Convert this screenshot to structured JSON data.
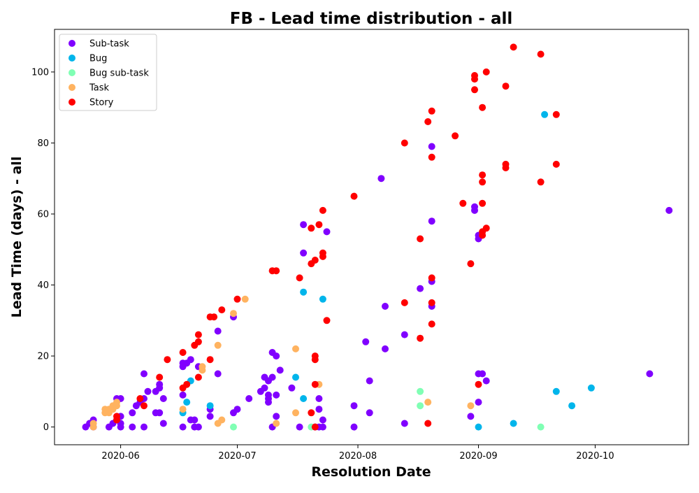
{
  "chart_data": {
    "type": "scatter",
    "title": "FB - Lead time distribution - all",
    "xlabel": "Resolution Date",
    "ylabel": "Lead Time (days) - all",
    "xlim": [
      "2020-05-15",
      "2020-10-25"
    ],
    "ylim": [
      -5,
      112
    ],
    "x_ticks": [
      "2020-06",
      "2020-07",
      "2020-08",
      "2020-09",
      "2020-10"
    ],
    "y_ticks": [
      0,
      20,
      40,
      60,
      80,
      100
    ],
    "grid": false,
    "legend_position": "top-left",
    "series": [
      {
        "name": "Sub-task",
        "color": "#8000ff",
        "points": [
          [
            "2020-05-23",
            0
          ],
          [
            "2020-05-24",
            1
          ],
          [
            "2020-05-25",
            2
          ],
          [
            "2020-05-25",
            0
          ],
          [
            "2020-05-29",
            0
          ],
          [
            "2020-05-30",
            1
          ],
          [
            "2020-05-31",
            2
          ],
          [
            "2020-05-31",
            8
          ],
          [
            "2020-06-01",
            8
          ],
          [
            "2020-06-01",
            3
          ],
          [
            "2020-06-01",
            1
          ],
          [
            "2020-06-01",
            0
          ],
          [
            "2020-06-04",
            4
          ],
          [
            "2020-06-04",
            0
          ],
          [
            "2020-06-05",
            6
          ],
          [
            "2020-06-06",
            7
          ],
          [
            "2020-06-07",
            15
          ],
          [
            "2020-06-07",
            8
          ],
          [
            "2020-06-07",
            0
          ],
          [
            "2020-06-08",
            10
          ],
          [
            "2020-06-10",
            10
          ],
          [
            "2020-06-10",
            4
          ],
          [
            "2020-06-11",
            11
          ],
          [
            "2020-06-11",
            12
          ],
          [
            "2020-06-11",
            4
          ],
          [
            "2020-06-12",
            8
          ],
          [
            "2020-06-12",
            1
          ],
          [
            "2020-06-17",
            9
          ],
          [
            "2020-06-17",
            17
          ],
          [
            "2020-06-17",
            18
          ],
          [
            "2020-06-17",
            0
          ],
          [
            "2020-06-18",
            18
          ],
          [
            "2020-06-19",
            19
          ],
          [
            "2020-06-19",
            2
          ],
          [
            "2020-06-20",
            0
          ],
          [
            "2020-06-20",
            2
          ],
          [
            "2020-06-21",
            0
          ],
          [
            "2020-06-21",
            17
          ],
          [
            "2020-06-24",
            3
          ],
          [
            "2020-06-24",
            5
          ],
          [
            "2020-06-26",
            27
          ],
          [
            "2020-06-26",
            15
          ],
          [
            "2020-06-30",
            31
          ],
          [
            "2020-06-30",
            4
          ],
          [
            "2020-07-01",
            5
          ],
          [
            "2020-07-04",
            8
          ],
          [
            "2020-07-07",
            10
          ],
          [
            "2020-07-08",
            11
          ],
          [
            "2020-07-08",
            14
          ],
          [
            "2020-07-09",
            13
          ],
          [
            "2020-07-09",
            9
          ],
          [
            "2020-07-09",
            8
          ],
          [
            "2020-07-09",
            7
          ],
          [
            "2020-07-10",
            21
          ],
          [
            "2020-07-10",
            14
          ],
          [
            "2020-07-10",
            0
          ],
          [
            "2020-07-11",
            20
          ],
          [
            "2020-07-11",
            9
          ],
          [
            "2020-07-11",
            3
          ],
          [
            "2020-07-12",
            16
          ],
          [
            "2020-07-15",
            11
          ],
          [
            "2020-07-17",
            0
          ],
          [
            "2020-07-18",
            57
          ],
          [
            "2020-07-18",
            49
          ],
          [
            "2020-07-21",
            0
          ],
          [
            "2020-07-22",
            5
          ],
          [
            "2020-07-22",
            8
          ],
          [
            "2020-07-22",
            0
          ],
          [
            "2020-07-23",
            0
          ],
          [
            "2020-07-23",
            2
          ],
          [
            "2020-07-24",
            55
          ],
          [
            "2020-07-31",
            6
          ],
          [
            "2020-07-31",
            0
          ],
          [
            "2020-08-03",
            24
          ],
          [
            "2020-08-04",
            13
          ],
          [
            "2020-08-04",
            4
          ],
          [
            "2020-08-07",
            70
          ],
          [
            "2020-08-08",
            34
          ],
          [
            "2020-08-08",
            22
          ],
          [
            "2020-08-13",
            26
          ],
          [
            "2020-08-13",
            1
          ],
          [
            "2020-08-17",
            39
          ],
          [
            "2020-08-20",
            79
          ],
          [
            "2020-08-20",
            58
          ],
          [
            "2020-08-20",
            41
          ],
          [
            "2020-08-20",
            34
          ],
          [
            "2020-08-30",
            3
          ],
          [
            "2020-08-31",
            62
          ],
          [
            "2020-08-31",
            61
          ],
          [
            "2020-09-01",
            54
          ],
          [
            "2020-09-01",
            53
          ],
          [
            "2020-09-01",
            7
          ],
          [
            "2020-09-01",
            15
          ],
          [
            "2020-09-02",
            15
          ],
          [
            "2020-09-03",
            13
          ],
          [
            "2020-10-15",
            15
          ],
          [
            "2020-10-20",
            61
          ]
        ]
      },
      {
        "name": "Bug",
        "color": "#00b5eb",
        "points": [
          [
            "2020-06-17",
            4
          ],
          [
            "2020-06-18",
            7
          ],
          [
            "2020-06-19",
            13
          ],
          [
            "2020-06-24",
            6
          ],
          [
            "2020-07-16",
            14
          ],
          [
            "2020-07-18",
            8
          ],
          [
            "2020-07-18",
            38
          ],
          [
            "2020-07-23",
            36
          ],
          [
            "2020-09-01",
            0
          ],
          [
            "2020-09-10",
            1
          ],
          [
            "2020-09-18",
            88
          ],
          [
            "2020-09-21",
            10
          ],
          [
            "2020-09-25",
            6
          ],
          [
            "2020-09-30",
            11
          ]
        ]
      },
      {
        "name": "Bug sub-task",
        "color": "#80ffb4",
        "points": [
          [
            "2020-06-30",
            0
          ],
          [
            "2020-07-20",
            0
          ],
          [
            "2020-08-17",
            10
          ],
          [
            "2020-08-17",
            6
          ],
          [
            "2020-09-17",
            0
          ]
        ]
      },
      {
        "name": "Task",
        "color": "#ffb360",
        "points": [
          [
            "2020-05-25",
            0
          ],
          [
            "2020-05-25",
            1
          ],
          [
            "2020-05-28",
            4
          ],
          [
            "2020-05-28",
            5
          ],
          [
            "2020-05-29",
            4
          ],
          [
            "2020-05-29",
            5
          ],
          [
            "2020-05-30",
            6
          ],
          [
            "2020-05-30",
            5
          ],
          [
            "2020-05-31",
            6
          ],
          [
            "2020-05-31",
            7
          ],
          [
            "2020-06-17",
            5
          ],
          [
            "2020-06-22",
            17
          ],
          [
            "2020-06-22",
            16
          ],
          [
            "2020-06-26",
            23
          ],
          [
            "2020-06-26",
            1
          ],
          [
            "2020-06-27",
            2
          ],
          [
            "2020-06-30",
            32
          ],
          [
            "2020-07-03",
            36
          ],
          [
            "2020-07-11",
            1
          ],
          [
            "2020-07-16",
            4
          ],
          [
            "2020-07-16",
            22
          ],
          [
            "2020-07-22",
            12
          ],
          [
            "2020-08-19",
            7
          ],
          [
            "2020-08-30",
            6
          ]
        ]
      },
      {
        "name": "Story",
        "color": "#ff0000",
        "points": [
          [
            "2020-05-31",
            3
          ],
          [
            "2020-05-31",
            2
          ],
          [
            "2020-06-06",
            8
          ],
          [
            "2020-06-07",
            6
          ],
          [
            "2020-06-11",
            14
          ],
          [
            "2020-06-13",
            19
          ],
          [
            "2020-06-17",
            21
          ],
          [
            "2020-06-17",
            11
          ],
          [
            "2020-06-18",
            12
          ],
          [
            "2020-06-20",
            23
          ],
          [
            "2020-06-21",
            24
          ],
          [
            "2020-06-21",
            26
          ],
          [
            "2020-06-21",
            14
          ],
          [
            "2020-06-24",
            31
          ],
          [
            "2020-06-24",
            19
          ],
          [
            "2020-06-25",
            31
          ],
          [
            "2020-06-27",
            33
          ],
          [
            "2020-07-01",
            36
          ],
          [
            "2020-07-10",
            44
          ],
          [
            "2020-07-11",
            44
          ],
          [
            "2020-07-17",
            42
          ],
          [
            "2020-07-20",
            56
          ],
          [
            "2020-07-20",
            46
          ],
          [
            "2020-07-20",
            4
          ],
          [
            "2020-07-21",
            47
          ],
          [
            "2020-07-21",
            20
          ],
          [
            "2020-07-21",
            19
          ],
          [
            "2020-07-21",
            12
          ],
          [
            "2020-07-21",
            0
          ],
          [
            "2020-07-22",
            57
          ],
          [
            "2020-07-23",
            61
          ],
          [
            "2020-07-23",
            49
          ],
          [
            "2020-07-23",
            48
          ],
          [
            "2020-07-24",
            30
          ],
          [
            "2020-07-31",
            65
          ],
          [
            "2020-08-13",
            80
          ],
          [
            "2020-08-13",
            35
          ],
          [
            "2020-08-17",
            53
          ],
          [
            "2020-08-17",
            25
          ],
          [
            "2020-08-19",
            86
          ],
          [
            "2020-08-19",
            1
          ],
          [
            "2020-08-20",
            89
          ],
          [
            "2020-08-20",
            76
          ],
          [
            "2020-08-20",
            42
          ],
          [
            "2020-08-20",
            35
          ],
          [
            "2020-08-20",
            29
          ],
          [
            "2020-08-26",
            82
          ],
          [
            "2020-08-28",
            63
          ],
          [
            "2020-08-30",
            46
          ],
          [
            "2020-08-31",
            98
          ],
          [
            "2020-08-31",
            99
          ],
          [
            "2020-08-31",
            95
          ],
          [
            "2020-09-01",
            12
          ],
          [
            "2020-09-02",
            90
          ],
          [
            "2020-09-02",
            71
          ],
          [
            "2020-09-02",
            69
          ],
          [
            "2020-09-02",
            63
          ],
          [
            "2020-09-02",
            55
          ],
          [
            "2020-09-02",
            54
          ],
          [
            "2020-09-03",
            100
          ],
          [
            "2020-09-03",
            56
          ],
          [
            "2020-09-08",
            96
          ],
          [
            "2020-09-08",
            73
          ],
          [
            "2020-09-08",
            74
          ],
          [
            "2020-09-10",
            107
          ],
          [
            "2020-09-17",
            105
          ],
          [
            "2020-09-17",
            69
          ],
          [
            "2020-09-21",
            88
          ],
          [
            "2020-09-21",
            74
          ]
        ]
      }
    ]
  }
}
